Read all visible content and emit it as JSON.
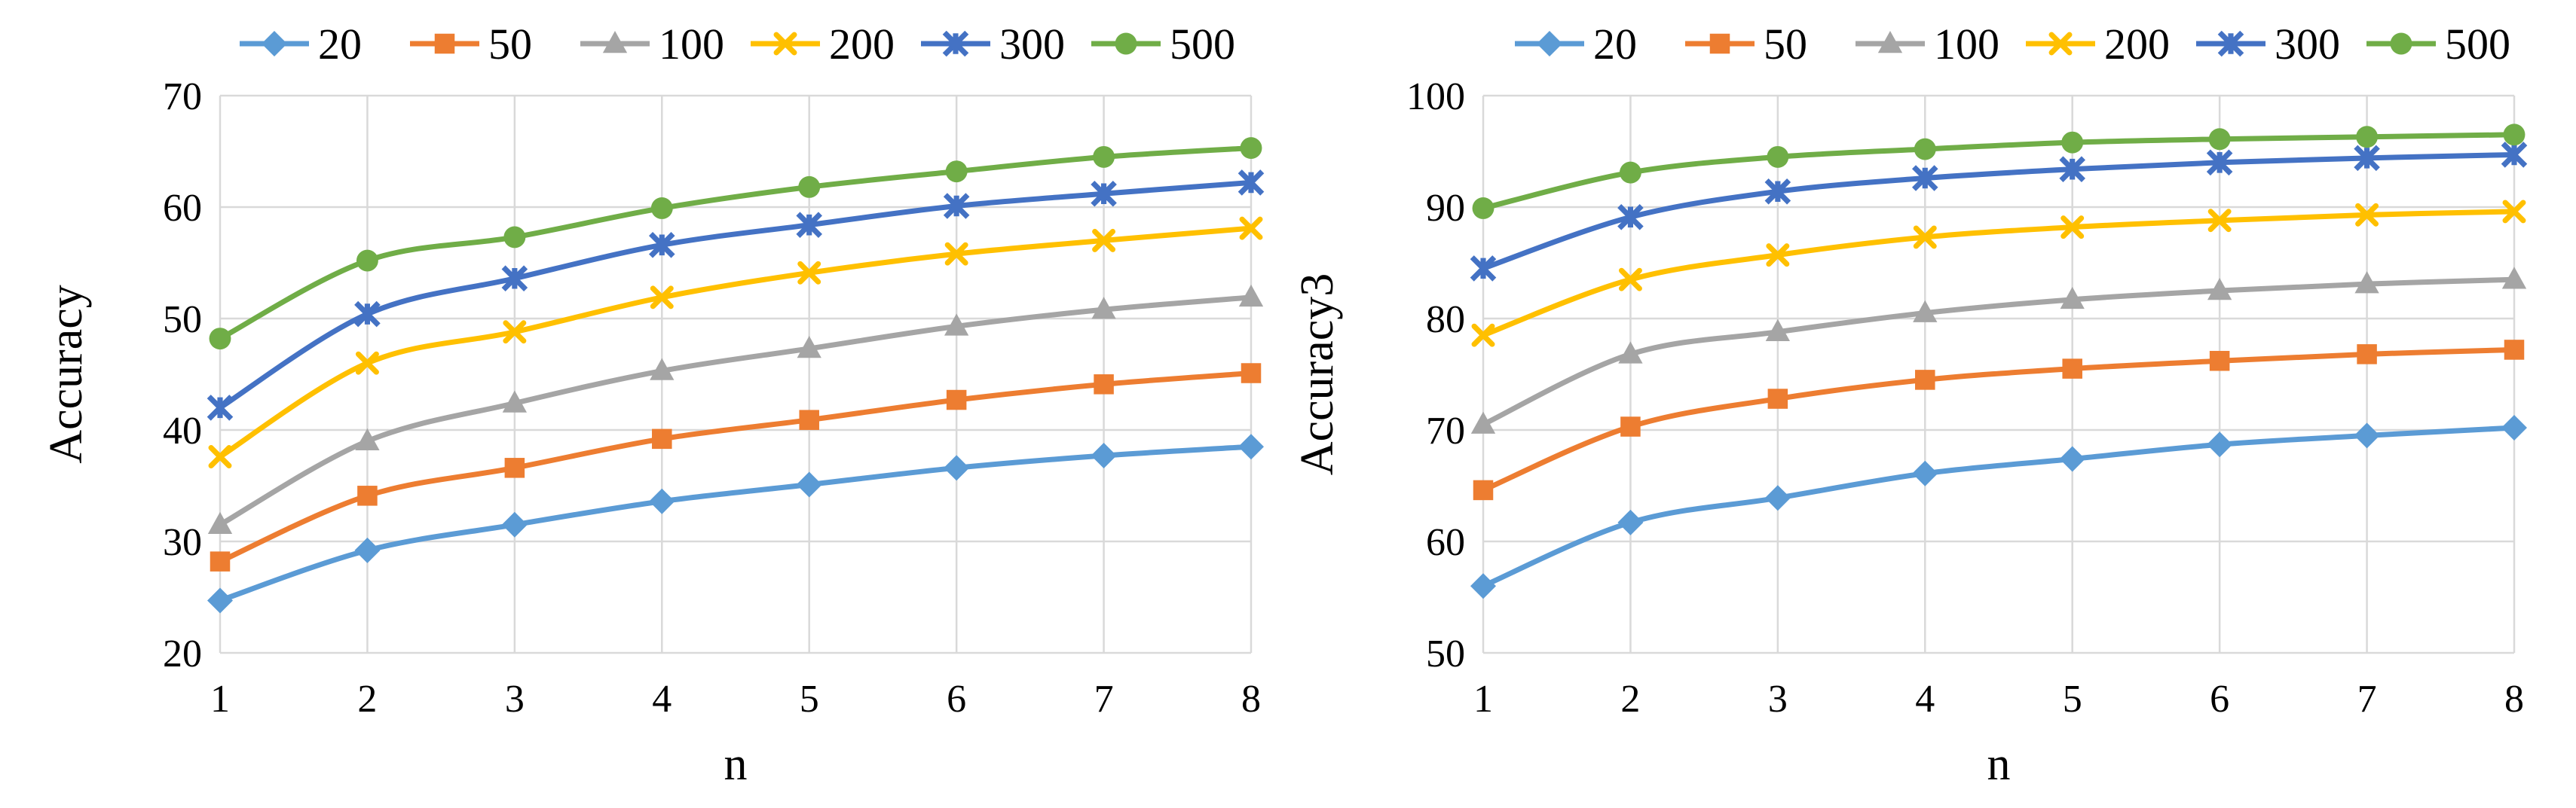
{
  "chart_data": [
    {
      "type": "line",
      "title": "",
      "xlabel": "n",
      "ylabel": "Accuracy",
      "x": [
        1,
        2,
        3,
        4,
        5,
        6,
        7,
        8
      ],
      "ylim": [
        20,
        70
      ],
      "yticks": [
        20,
        30,
        40,
        50,
        60,
        70
      ],
      "grid": true,
      "legend_position": "top",
      "series": [
        {
          "name": "20",
          "marker": "diamond",
          "color": "#5b9bd5",
          "values": [
            24.7,
            29.2,
            31.5,
            33.6,
            35.1,
            36.6,
            37.7,
            38.5
          ]
        },
        {
          "name": "50",
          "marker": "square",
          "color": "#ed7d31",
          "values": [
            28.2,
            34.1,
            36.6,
            39.2,
            40.9,
            42.7,
            44.1,
            45.1
          ]
        },
        {
          "name": "100",
          "marker": "triangle",
          "color": "#a5a5a5",
          "values": [
            31.5,
            39.0,
            42.4,
            45.3,
            47.3,
            49.3,
            50.8,
            51.9
          ]
        },
        {
          "name": "200",
          "marker": "x",
          "color": "#ffc000",
          "values": [
            37.6,
            46.0,
            48.8,
            51.9,
            54.1,
            55.8,
            57.0,
            58.1
          ]
        },
        {
          "name": "300",
          "marker": "star",
          "color": "#4472c4",
          "values": [
            42.0,
            50.4,
            53.6,
            56.6,
            58.4,
            60.1,
            61.2,
            62.2
          ]
        },
        {
          "name": "500",
          "marker": "circle",
          "color": "#70ad47",
          "values": [
            48.2,
            55.2,
            57.3,
            59.9,
            61.8,
            63.2,
            64.5,
            65.3
          ]
        }
      ]
    },
    {
      "type": "line",
      "title": "",
      "xlabel": "n",
      "ylabel": "Accuracy3",
      "x": [
        1,
        2,
        3,
        4,
        5,
        6,
        7,
        8
      ],
      "ylim": [
        50,
        100
      ],
      "yticks": [
        50,
        60,
        70,
        80,
        90,
        100
      ],
      "grid": true,
      "legend_position": "top",
      "series": [
        {
          "name": "20",
          "marker": "diamond",
          "color": "#5b9bd5",
          "values": [
            56.0,
            61.7,
            63.9,
            66.1,
            67.4,
            68.7,
            69.5,
            70.2
          ]
        },
        {
          "name": "50",
          "marker": "square",
          "color": "#ed7d31",
          "values": [
            64.6,
            70.3,
            72.8,
            74.5,
            75.5,
            76.2,
            76.8,
            77.2
          ]
        },
        {
          "name": "100",
          "marker": "triangle",
          "color": "#a5a5a5",
          "values": [
            70.5,
            76.8,
            78.8,
            80.5,
            81.7,
            82.5,
            83.1,
            83.5
          ]
        },
        {
          "name": "200",
          "marker": "x",
          "color": "#ffc000",
          "values": [
            78.5,
            83.5,
            85.7,
            87.3,
            88.2,
            88.8,
            89.3,
            89.6
          ]
        },
        {
          "name": "300",
          "marker": "star",
          "color": "#4472c4",
          "values": [
            84.5,
            89.1,
            91.4,
            92.6,
            93.4,
            94.0,
            94.4,
            94.7
          ]
        },
        {
          "name": "500",
          "marker": "circle",
          "color": "#70ad47",
          "values": [
            89.9,
            93.1,
            94.5,
            95.2,
            95.8,
            96.1,
            96.3,
            96.5
          ]
        }
      ]
    }
  ]
}
